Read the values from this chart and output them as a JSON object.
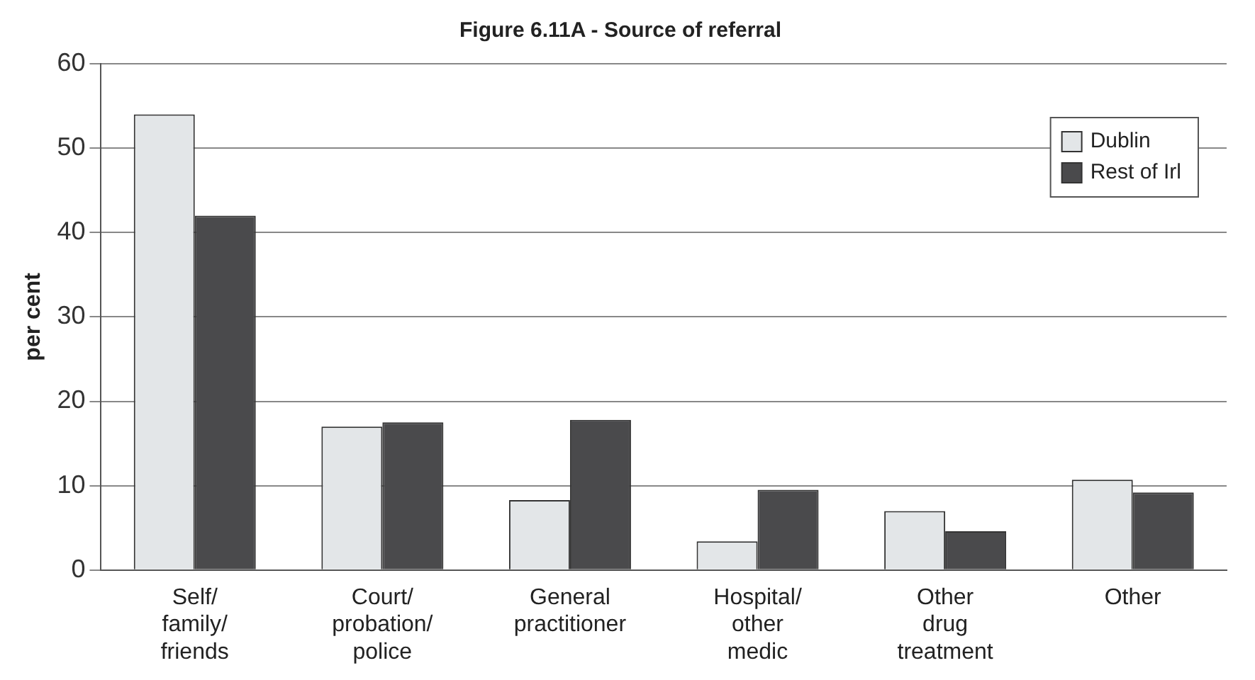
{
  "chart_data": {
    "type": "bar",
    "title": "Figure 6.11A - Source of referral",
    "ylabel": "per cent",
    "categories": [
      "Self/\nfamily/\nfriends",
      "Court/\nprobation/\npolice",
      "General\npractitioner",
      "Hospital/\nother\nmedic",
      "Other\ndrug\ntreatment",
      "Other"
    ],
    "series": [
      {
        "name": "Dublin",
        "color": "#e3e6e8",
        "values": [
          54,
          17,
          8.3,
          3.4,
          7,
          10.7
        ]
      },
      {
        "name": "Rest of Irl",
        "color": "#4a4a4c",
        "values": [
          42,
          17.5,
          17.8,
          9.5,
          4.6,
          9.2
        ]
      }
    ],
    "ylim": [
      0,
      60
    ],
    "yticks": [
      0,
      10,
      20,
      30,
      40,
      50,
      60
    ],
    "grid": "y",
    "legend": "top right"
  }
}
